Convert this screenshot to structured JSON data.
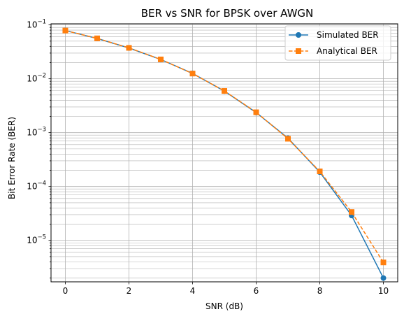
{
  "chart_data": {
    "type": "line",
    "title": "BER vs SNR for BPSK over AWGN",
    "xlabel": "SNR (dB)",
    "ylabel": "Bit Error Rate (BER)",
    "x": [
      0,
      1,
      2,
      3,
      4,
      5,
      6,
      7,
      8,
      9,
      10
    ],
    "xlim": [
      -0.45,
      10.45
    ],
    "ylim": [
      1.7e-06,
      0.105
    ],
    "y_scale": "log",
    "x_ticks": [
      0,
      2,
      4,
      6,
      8,
      10
    ],
    "x_tick_labels": [
      "0",
      "2",
      "4",
      "6",
      "8",
      "10"
    ],
    "y_ticks": [
      1e-05,
      0.0001,
      0.001,
      0.01,
      0.1
    ],
    "y_tick_labels": [
      {
        "base": "10",
        "exp": "−5"
      },
      {
        "base": "10",
        "exp": "−4"
      },
      {
        "base": "10",
        "exp": "−3"
      },
      {
        "base": "10",
        "exp": "−2"
      },
      {
        "base": "10",
        "exp": "−1"
      }
    ],
    "grid": "both (major and minor)",
    "legend_position": "top-right",
    "series": [
      {
        "name": "Simulated BER",
        "color": "#1f77b4",
        "line_style": "solid",
        "marker": "circle",
        "values": [
          0.0786,
          0.0561,
          0.0373,
          0.0228,
          0.0126,
          0.0059,
          0.00236,
          0.00079,
          0.000185,
          2.9e-05,
          2e-06
        ]
      },
      {
        "name": "Analytical BER",
        "color": "#ff7f0e",
        "line_style": "dashed",
        "marker": "square",
        "values": [
          0.0786,
          0.0563,
          0.0375,
          0.0229,
          0.0125,
          0.00595,
          0.00239,
          0.00077,
          0.000191,
          3.36e-05,
          3.9e-06
        ]
      }
    ]
  }
}
